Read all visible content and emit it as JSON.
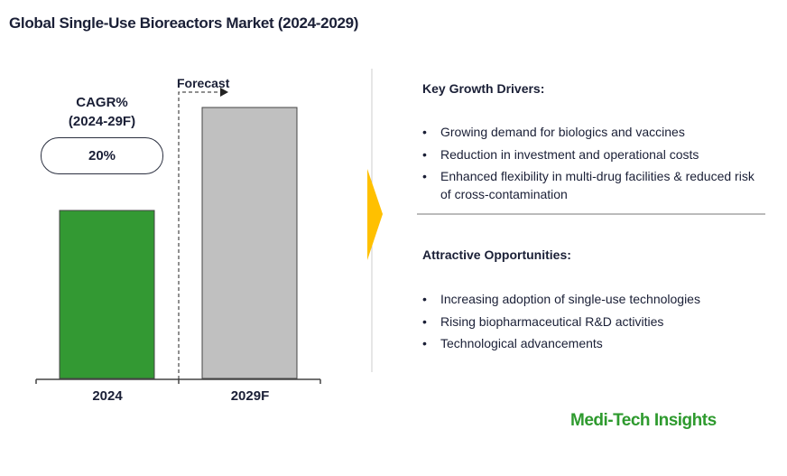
{
  "title": "Global Single-Use Bioreactors Market (2024-2029)",
  "chart_data": {
    "type": "bar",
    "categories": [
      "2024",
      "2029F"
    ],
    "values": [
      62,
      100
    ],
    "ylim": [
      0,
      100
    ],
    "ylabel": "",
    "xlabel": "",
    "colors": [
      "#339933",
      "#c0c0c0"
    ],
    "annotations": {
      "forecast": "Forecast",
      "cagr_label_1": "CAGR%",
      "cagr_label_2": "(2024-29F)",
      "cagr_value": "20%"
    }
  },
  "drivers": {
    "heading": "Key Growth Drivers:",
    "items": [
      "Growing demand for biologics and vaccines",
      "Reduction in investment and operational costs",
      "Enhanced flexibility in multi-drug facilities & reduced risk of cross-contamination"
    ]
  },
  "opportunities": {
    "heading": "Attractive Opportunities:",
    "items": [
      "Increasing adoption of single-use technologies",
      "Rising biopharmaceutical R&D activities",
      "Technological advancements"
    ]
  },
  "logo": "Medi-Tech Insights"
}
